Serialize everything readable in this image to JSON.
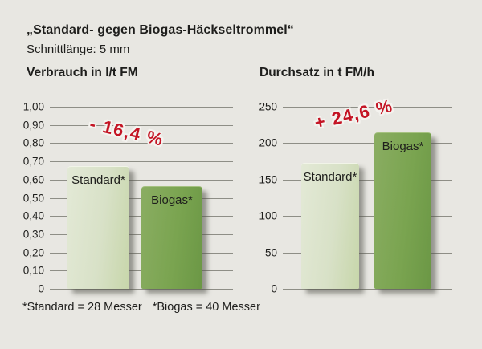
{
  "header": {
    "title": "„Standard- gegen Biogas-Häckseltrommel“",
    "subtitle": "Schnittlänge: 5 mm"
  },
  "footnote": {
    "standard": "*Standard = 28 Messer",
    "biogas": "*Biogas = 40 Messer"
  },
  "colors": {
    "background": "#e8e7e2",
    "text": "#1e1e1c",
    "gridline": "#8e8e86",
    "annotation_red": "#c41424",
    "bar_standard_light": "#d8e1c7",
    "bar_biogas_dark": "#7aa450"
  },
  "chart_data": [
    {
      "type": "bar",
      "title": "Verbrauch in l/t FM",
      "categories": [
        "Standard*",
        "Biogas*"
      ],
      "values": [
        0.67,
        0.56
      ],
      "ylim": [
        0,
        1.0
      ],
      "yticks": [
        1.0,
        0.9,
        0.8,
        0.7,
        0.6,
        0.5,
        0.4,
        0.3,
        0.2,
        0.1,
        0
      ],
      "ytick_labels": [
        "1,00",
        "0,90",
        "0,80",
        "0,70",
        "0,60",
        "0,50",
        "0,40",
        "0,30",
        "0,20",
        "0,10",
        "0"
      ],
      "annotation": "- 16,4 %",
      "xlabel": "",
      "ylabel": "Verbrauch in l/t FM",
      "grid": true,
      "legend": false
    },
    {
      "type": "bar",
      "title": "Durchsatz in t FM/h",
      "categories": [
        "Standard*",
        "Biogas*"
      ],
      "values": [
        172,
        214
      ],
      "ylim": [
        0,
        250
      ],
      "yticks": [
        250,
        200,
        150,
        100,
        50,
        0
      ],
      "ytick_labels": [
        "250",
        "200",
        "150",
        "100",
        "50",
        "0"
      ],
      "annotation": "+ 24,6 %",
      "xlabel": "",
      "ylabel": "Durchsatz in t FM/h",
      "grid": true,
      "legend": false
    }
  ]
}
